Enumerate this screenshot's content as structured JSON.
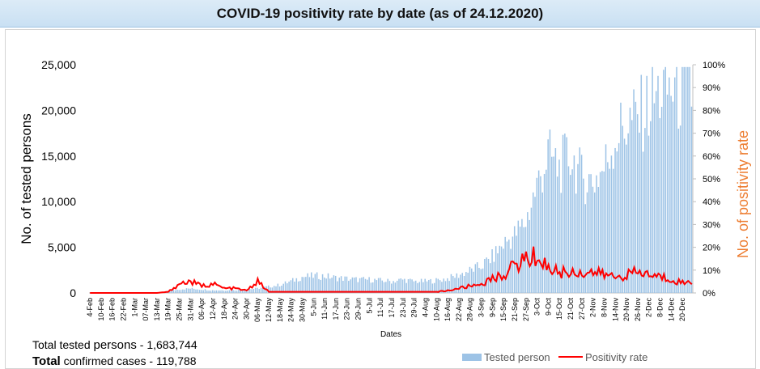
{
  "header": {
    "title": "COVID-19 positivity rate by date (as of 24.12.2020)"
  },
  "summary": {
    "tested_label_a": "Total tested ",
    "tested_label_b": "persons",
    "tested_value": " - 1,683,744",
    "confirmed_label_a": "Total",
    "confirmed_label_b": " confirmed cases - ",
    "confirmed_value": "119,788"
  },
  "colors": {
    "bars": "#9dc3e6",
    "line": "#ff0000",
    "y2_label": "#ed7d31"
  },
  "chart_data": {
    "type": "bar",
    "title": "",
    "xlabel": "Dates",
    "ylabel": "No. of tested persons",
    "y2label": "No. of positivity rate",
    "ylim": [
      0,
      25000
    ],
    "y2lim": [
      0,
      100
    ],
    "y_ticks": [
      "0",
      "5,000",
      "10,000",
      "15,000",
      "20,000",
      "25,000"
    ],
    "y2_ticks": [
      "0%",
      "10%",
      "20%",
      "30%",
      "40%",
      "50%",
      "60%",
      "70%",
      "80%",
      "90%",
      "100%"
    ],
    "x_tick_labels": [
      "4-Feb",
      "10-Feb",
      "16-Feb",
      "22-Feb",
      "1-Mar",
      "07-Mar",
      "13-Mar",
      "19-Mar",
      "25-Mar",
      "31-Mar",
      "06-Apr",
      "12-Apr",
      "18-Apr",
      "24-Apr",
      "30-Apr",
      "06-May",
      "12-May",
      "18-May",
      "24-May",
      "30-May",
      "5-Jun",
      "11-Jun",
      "17-Jun",
      "23-Jun",
      "29-Jun",
      "5-Jul",
      "11-Jul",
      "17-Jul",
      "23-Jul",
      "29-Jul",
      "4-Aug",
      "10-Aug",
      "16-Aug",
      "22-Aug",
      "28-Aug",
      "3-Sep",
      "9-Sep",
      "15-Sep",
      "21-Sep",
      "27-Sep",
      "3-Oct",
      "9-Oct",
      "15-Oct",
      "21-Oct",
      "27-Oct",
      "2-Nov",
      "8-Nov",
      "14-Nov",
      "20-Nov",
      "26-Nov",
      "2-Dec",
      "8-Dec",
      "14-Dec",
      "20-Dec"
    ],
    "legend": [
      "Tested person",
      "Positivity rate"
    ],
    "legend_position": "bottom-right",
    "series": [
      {
        "name": "Tested person",
        "type": "bar",
        "axis": "left",
        "values_by_week": [
          0,
          0,
          0,
          0,
          0,
          0,
          0,
          200,
          400,
          500,
          400,
          300,
          300,
          300,
          400,
          500,
          700,
          900,
          1300,
          1800,
          1900,
          1900,
          1700,
          1600,
          1500,
          1500,
          1400,
          1300,
          1500,
          1300,
          1300,
          1400,
          1600,
          2000,
          2500,
          3000,
          4000,
          5500,
          6500,
          8000,
          12000,
          15500,
          14000,
          15500,
          13000,
          12500,
          14000,
          17500,
          19000,
          19500,
          21000,
          22500,
          23000,
          22500
        ]
      },
      {
        "name": "Positivity rate",
        "type": "line",
        "axis": "right",
        "values_by_week": [
          0,
          0,
          0,
          0,
          0,
          0,
          0,
          0.5,
          4,
          5,
          3,
          4,
          2,
          2,
          1,
          5,
          0.5,
          0.5,
          0.5,
          0.5,
          0.5,
          0.5,
          0.5,
          0.5,
          0.5,
          0.5,
          0.5,
          0.5,
          0.5,
          0.5,
          0.5,
          0.5,
          1,
          2,
          3,
          4,
          6,
          8,
          12,
          15,
          16,
          11,
          9,
          9,
          9,
          9,
          8,
          7,
          8,
          9,
          8,
          7,
          6,
          4.5
        ]
      }
    ]
  }
}
